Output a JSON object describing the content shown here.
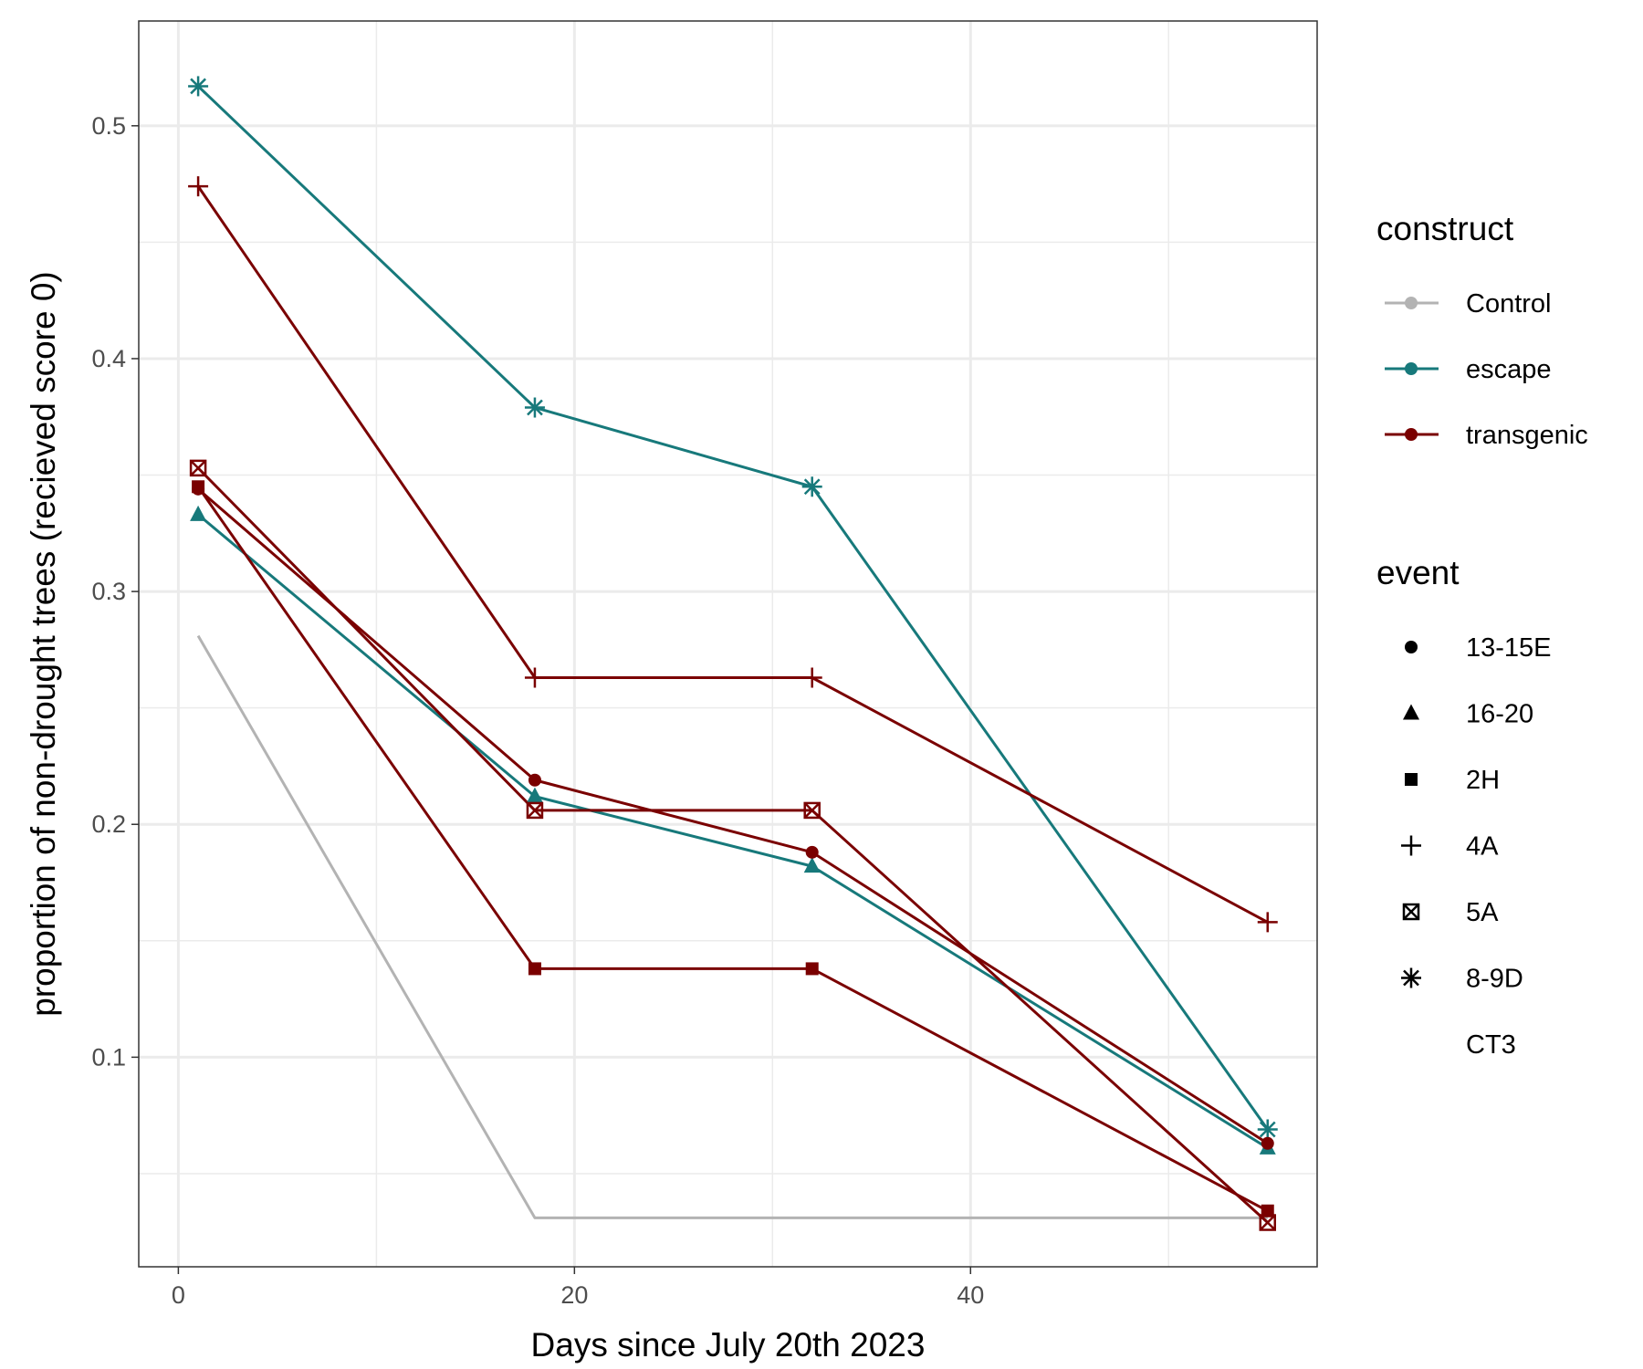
{
  "chart_data": {
    "type": "line",
    "title": "",
    "xlabel": "Days since July 20th 2023",
    "ylabel": "proportion of non-drought trees (recieved score 0)",
    "xlim": [
      -2,
      57.5
    ],
    "ylim": [
      0.01,
      0.545
    ],
    "x_ticks": [
      0,
      20,
      40
    ],
    "y_ticks": [
      0.1,
      0.2,
      0.3,
      0.4,
      0.5
    ],
    "grid": true,
    "legend_position": "right",
    "colors": {
      "Control": "#b3b3b3",
      "escape": "#17797b",
      "transgenic": "#7a0000"
    },
    "legend": {
      "construct": {
        "title": "construct",
        "items": [
          "Control",
          "escape",
          "transgenic"
        ]
      },
      "event": {
        "title": "event",
        "items": [
          {
            "label": "13-15E",
            "shape": "circle"
          },
          {
            "label": "16-20",
            "shape": "triangle"
          },
          {
            "label": "2H",
            "shape": "square"
          },
          {
            "label": "4A",
            "shape": "plus"
          },
          {
            "label": "5A",
            "shape": "boxed-x"
          },
          {
            "label": "8-9D",
            "shape": "asterisk"
          },
          {
            "label": "CT3",
            "shape": "none"
          }
        ]
      }
    },
    "series": [
      {
        "construct": "Control",
        "event": "CT3",
        "shape": "none",
        "x": [
          1,
          18,
          32,
          55
        ],
        "y": [
          0.281,
          0.031,
          0.031,
          0.031
        ]
      },
      {
        "construct": "escape",
        "event": "8-9D",
        "shape": "asterisk",
        "x": [
          1,
          18,
          32,
          55
        ],
        "y": [
          0.517,
          0.379,
          0.345,
          0.069
        ]
      },
      {
        "construct": "escape",
        "event": "16-20",
        "shape": "triangle",
        "x": [
          1,
          18,
          32,
          55
        ],
        "y": [
          0.333,
          0.212,
          0.182,
          0.061
        ]
      },
      {
        "construct": "transgenic",
        "event": "4A",
        "shape": "plus",
        "x": [
          1,
          18,
          32,
          55
        ],
        "y": [
          0.474,
          0.263,
          0.263,
          0.158
        ]
      },
      {
        "construct": "transgenic",
        "event": "5A",
        "shape": "boxed-x",
        "x": [
          1,
          18,
          32,
          55
        ],
        "y": [
          0.353,
          0.206,
          0.206,
          0.029
        ]
      },
      {
        "construct": "transgenic",
        "event": "13-15E",
        "shape": "circle",
        "x": [
          1,
          18,
          32,
          55
        ],
        "y": [
          0.344,
          0.219,
          0.188,
          0.063
        ]
      },
      {
        "construct": "transgenic",
        "event": "2H",
        "shape": "square",
        "x": [
          1,
          18,
          32,
          55
        ],
        "y": [
          0.345,
          0.138,
          0.138,
          0.034
        ]
      }
    ]
  }
}
